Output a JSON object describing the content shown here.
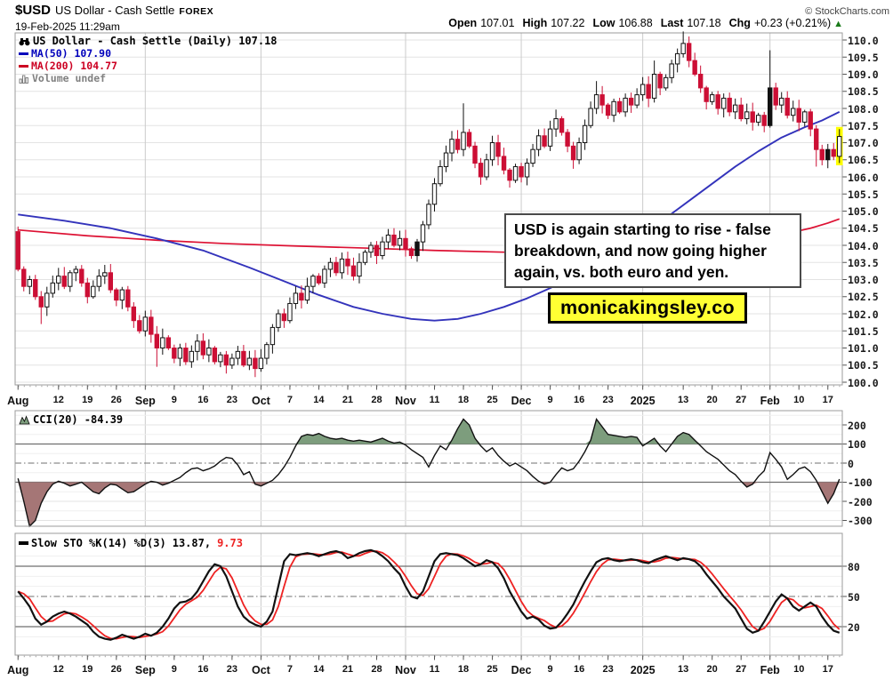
{
  "header": {
    "symbol": "$USD",
    "name": "US Dollar - Cash Settle",
    "exchange": "FOREX",
    "datetime": "19-Feb-2025 11:29am",
    "copyright": "© StockCharts.com",
    "quote": {
      "open_label": "Open",
      "open": "107.01",
      "high_label": "High",
      "high": "107.22",
      "low_label": "Low",
      "low": "106.88",
      "last_label": "Last",
      "last": "107.18",
      "chg_label": "Chg",
      "chg": "+0.23 (+0.21%)",
      "direction": "▲"
    }
  },
  "main_legend": {
    "title": "US Dollar - Cash Settle (Daily) 107.18",
    "ma50": "MA(50) 107.90",
    "ma200": "MA(200) 104.77",
    "volume": "Volume undef"
  },
  "cci_legend": {
    "label": "CCI(20) -84.39"
  },
  "sto_legend": {
    "label": "Slow STO %K(14) %D(3)",
    "k_value": "13.87,",
    "d_value": "9.73"
  },
  "annotations": {
    "callout_lines": [
      "USD is again starting to rise - false",
      "breakdown, and now going higher",
      "again, vs. both euro and yen."
    ],
    "watermark": "monicakingsley.co"
  },
  "colors": {
    "candle_down": "#cc0f35",
    "candle_up_stroke": "#111111",
    "candle_black": "#111111",
    "ma50": "#3333bb",
    "ma50_text": "#0000bb",
    "ma200": "#dd1133",
    "ma200_text": "#cc0022",
    "volume_text": "#808080",
    "cci_fill_up": "#7d9d7d",
    "cci_fill_down": "#a57676",
    "cci_line": "#111111",
    "sto_k": "#111111",
    "sto_d": "#ee2222",
    "grid_light": "#e3e3e3",
    "grid_faint": "#efefef",
    "grid_month": "#cbcbcb",
    "band_line": "#6f6f6f",
    "panel_border": "#9b9b9b",
    "highlight": "#ffff00",
    "up_triangle": "#1a7a1a"
  },
  "chart_data": [
    {
      "type": "candlestick",
      "title": "US Dollar - Cash Settle (Daily)",
      "last": 107.18,
      "ylim": [
        99.9,
        110.25
      ],
      "y_ticks": [
        "110.0",
        "109.5",
        "109.0",
        "108.5",
        "108.0",
        "107.5",
        "107.0",
        "106.5",
        "106.0",
        "105.5",
        "105.0",
        "104.5",
        "104.0",
        "103.5",
        "103.0",
        "102.5",
        "102.0",
        "101.5",
        "101.0",
        "100.5",
        "100.0"
      ],
      "x_labels": [
        {
          "t": "Aug",
          "i": 0,
          "b": 1
        },
        {
          "t": "12",
          "i": 7
        },
        {
          "t": "19",
          "i": 12
        },
        {
          "t": "26",
          "i": 17
        },
        {
          "t": "Sep",
          "i": 22,
          "b": 1,
          "v": 1
        },
        {
          "t": "9",
          "i": 27
        },
        {
          "t": "16",
          "i": 32
        },
        {
          "t": "23",
          "i": 37
        },
        {
          "t": "Oct",
          "i": 42,
          "b": 1,
          "v": 1
        },
        {
          "t": "7",
          "i": 47
        },
        {
          "t": "14",
          "i": 52
        },
        {
          "t": "21",
          "i": 57
        },
        {
          "t": "28",
          "i": 62
        },
        {
          "t": "Nov",
          "i": 67,
          "b": 1,
          "v": 1
        },
        {
          "t": "11",
          "i": 72
        },
        {
          "t": "18",
          "i": 77
        },
        {
          "t": "25",
          "i": 82
        },
        {
          "t": "Dec",
          "i": 87,
          "b": 1,
          "v": 1
        },
        {
          "t": "9",
          "i": 92
        },
        {
          "t": "16",
          "i": 97
        },
        {
          "t": "23",
          "i": 102
        },
        {
          "t": "2025",
          "i": 108,
          "b": 1,
          "v": 1
        },
        {
          "t": "13",
          "i": 115
        },
        {
          "t": "20",
          "i": 120
        },
        {
          "t": "27",
          "i": 125
        },
        {
          "t": "Feb",
          "i": 130,
          "b": 1,
          "v": 1
        },
        {
          "t": "10",
          "i": 135
        },
        {
          "t": "17",
          "i": 140
        }
      ],
      "first_open": 104.4,
      "closes": [
        103.3,
        102.8,
        103.0,
        102.5,
        102.2,
        102.6,
        102.9,
        103.1,
        102.8,
        103.2,
        103.3,
        102.9,
        102.5,
        102.8,
        103.1,
        103.2,
        102.7,
        102.4,
        102.7,
        102.2,
        101.8,
        101.5,
        101.9,
        101.4,
        101.0,
        101.3,
        101.0,
        100.7,
        101.0,
        100.6,
        100.9,
        101.2,
        100.8,
        101.0,
        100.6,
        100.8,
        100.5,
        100.7,
        100.9,
        100.5,
        100.7,
        100.4,
        100.7,
        101.1,
        101.6,
        102.0,
        101.8,
        102.3,
        102.6,
        102.4,
        102.8,
        103.1,
        102.9,
        103.3,
        103.5,
        103.2,
        103.6,
        103.4,
        103.1,
        103.5,
        103.8,
        104.0,
        103.7,
        104.1,
        104.3,
        104.0,
        104.2,
        103.9,
        103.7,
        104.1,
        104.6,
        105.2,
        105.8,
        106.3,
        106.7,
        107.1,
        106.8,
        107.3,
        106.9,
        106.4,
        106.0,
        106.5,
        107.0,
        106.6,
        106.2,
        105.9,
        106.3,
        106.0,
        106.4,
        106.8,
        107.2,
        106.9,
        107.4,
        107.7,
        107.3,
        106.9,
        106.5,
        107.0,
        107.5,
        108.0,
        108.4,
        108.1,
        107.8,
        108.2,
        107.9,
        108.3,
        108.1,
        108.4,
        108.7,
        108.3,
        109.0,
        108.6,
        108.9,
        109.3,
        109.6,
        109.9,
        109.4,
        109.0,
        108.6,
        108.2,
        108.4,
        108.0,
        108.3,
        107.9,
        108.1,
        107.7,
        107.9,
        107.6,
        107.8,
        107.5,
        108.6,
        108.1,
        108.3,
        107.8,
        108.0,
        107.6,
        107.9,
        107.4,
        106.8,
        106.5,
        106.8,
        106.6,
        107.18
      ],
      "wick_hi": {
        "0": 104.55,
        "77": 108.15,
        "100": 108.8,
        "110": 109.4,
        "115": 110.25,
        "130": 109.7
      },
      "wick_lo": {
        "4": 101.7,
        "24": 100.45,
        "41": 100.15,
        "138": 106.3
      },
      "black_filled": [
        69,
        130,
        140
      ],
      "highlight_last": true,
      "ma50": {
        "name": "MA(50)",
        "last": 107.9,
        "points": [
          [
            0,
            104.9
          ],
          [
            8,
            104.72
          ],
          [
            16,
            104.5
          ],
          [
            24,
            104.2
          ],
          [
            32,
            103.85
          ],
          [
            40,
            103.35
          ],
          [
            46,
            102.95
          ],
          [
            52,
            102.55
          ],
          [
            58,
            102.2
          ],
          [
            63,
            102.0
          ],
          [
            68,
            101.85
          ],
          [
            72,
            101.8
          ],
          [
            76,
            101.85
          ],
          [
            80,
            102.0
          ],
          [
            84,
            102.2
          ],
          [
            88,
            102.45
          ],
          [
            92,
            102.75
          ],
          [
            96,
            103.1
          ],
          [
            100,
            103.5
          ],
          [
            104,
            103.9
          ],
          [
            108,
            104.35
          ],
          [
            112,
            104.8
          ],
          [
            116,
            105.3
          ],
          [
            120,
            105.8
          ],
          [
            124,
            106.3
          ],
          [
            128,
            106.75
          ],
          [
            132,
            107.15
          ],
          [
            136,
            107.45
          ],
          [
            139,
            107.65
          ],
          [
            142,
            107.9
          ]
        ]
      },
      "ma200": {
        "name": "MA(200)",
        "last": 104.77,
        "points": [
          [
            0,
            104.45
          ],
          [
            12,
            104.28
          ],
          [
            24,
            104.15
          ],
          [
            36,
            104.05
          ],
          [
            48,
            103.98
          ],
          [
            60,
            103.92
          ],
          [
            72,
            103.85
          ],
          [
            84,
            103.8
          ],
          [
            96,
            103.82
          ],
          [
            104,
            103.88
          ],
          [
            110,
            103.93
          ],
          [
            116,
            104.0
          ],
          [
            122,
            104.1
          ],
          [
            128,
            104.22
          ],
          [
            133,
            104.35
          ],
          [
            137,
            104.5
          ],
          [
            140,
            104.65
          ],
          [
            142,
            104.77
          ]
        ]
      }
    },
    {
      "type": "area-line",
      "title": "CCI(20)",
      "last": -84.39,
      "ylim": [
        -330,
        270
      ],
      "y_ticks": [
        200,
        100,
        0,
        -100,
        -200,
        -300
      ],
      "upper_band": 100,
      "lower_band": -100,
      "values": [
        -80,
        -200,
        -350,
        -300,
        -210,
        -150,
        -110,
        -95,
        -105,
        -120,
        -110,
        -100,
        -125,
        -150,
        -160,
        -130,
        -110,
        -115,
        -135,
        -155,
        -150,
        -130,
        -110,
        -95,
        -100,
        -115,
        -105,
        -90,
        -75,
        -50,
        -30,
        -25,
        -40,
        -30,
        -15,
        10,
        30,
        25,
        -10,
        -60,
        -45,
        -110,
        -120,
        -105,
        -90,
        -60,
        -20,
        30,
        90,
        140,
        150,
        145,
        155,
        140,
        130,
        125,
        130,
        120,
        115,
        120,
        115,
        110,
        120,
        130,
        115,
        105,
        110,
        95,
        70,
        50,
        30,
        -20,
        40,
        90,
        70,
        120,
        180,
        230,
        200,
        130,
        90,
        60,
        80,
        40,
        10,
        -15,
        0,
        -20,
        -40,
        -70,
        -95,
        -110,
        -100,
        -60,
        -25,
        -40,
        -30,
        10,
        60,
        120,
        230,
        190,
        150,
        145,
        140,
        135,
        140,
        135,
        90,
        110,
        130,
        90,
        60,
        100,
        140,
        160,
        150,
        120,
        90,
        60,
        40,
        20,
        -10,
        -40,
        -60,
        -95,
        -125,
        -110,
        -70,
        -40,
        55,
        20,
        -20,
        -85,
        -60,
        -30,
        -20,
        -45,
        -90,
        -150,
        -210,
        -160,
        -84
      ]
    },
    {
      "type": "line",
      "title": "Slow STO %K(14) %D(3)",
      "k_last": 13.87,
      "d_last": 9.73,
      "ylim": [
        -8,
        109
      ],
      "y_ticks": [
        80,
        50,
        20
      ],
      "upper_band": 80,
      "lower_band": 20,
      "mid": 50,
      "k": [
        55,
        48,
        40,
        28,
        22,
        25,
        30,
        33,
        35,
        33,
        30,
        26,
        22,
        15,
        10,
        8,
        7,
        9,
        12,
        10,
        8,
        10,
        13,
        11,
        14,
        20,
        28,
        38,
        44,
        45,
        48,
        55,
        65,
        75,
        82,
        80,
        70,
        55,
        40,
        30,
        25,
        22,
        20,
        25,
        35,
        60,
        85,
        92,
        91,
        92,
        93,
        92,
        90,
        92,
        94,
        95,
        93,
        88,
        90,
        93,
        95,
        96,
        94,
        90,
        85,
        78,
        72,
        60,
        50,
        48,
        55,
        70,
        85,
        92,
        93,
        92,
        91,
        88,
        84,
        80,
        82,
        86,
        84,
        78,
        68,
        55,
        45,
        35,
        28,
        30,
        27,
        21,
        18,
        19,
        25,
        33,
        42,
        54,
        65,
        75,
        84,
        87,
        88,
        86,
        85,
        86,
        87,
        86,
        84,
        83,
        86,
        88,
        90,
        88,
        86,
        88,
        87,
        85,
        80,
        72,
        65,
        58,
        50,
        44,
        38,
        28,
        18,
        14,
        16,
        25,
        35,
        45,
        52,
        48,
        40,
        36,
        40,
        44,
        40,
        30,
        22,
        16,
        14
      ]
    }
  ]
}
